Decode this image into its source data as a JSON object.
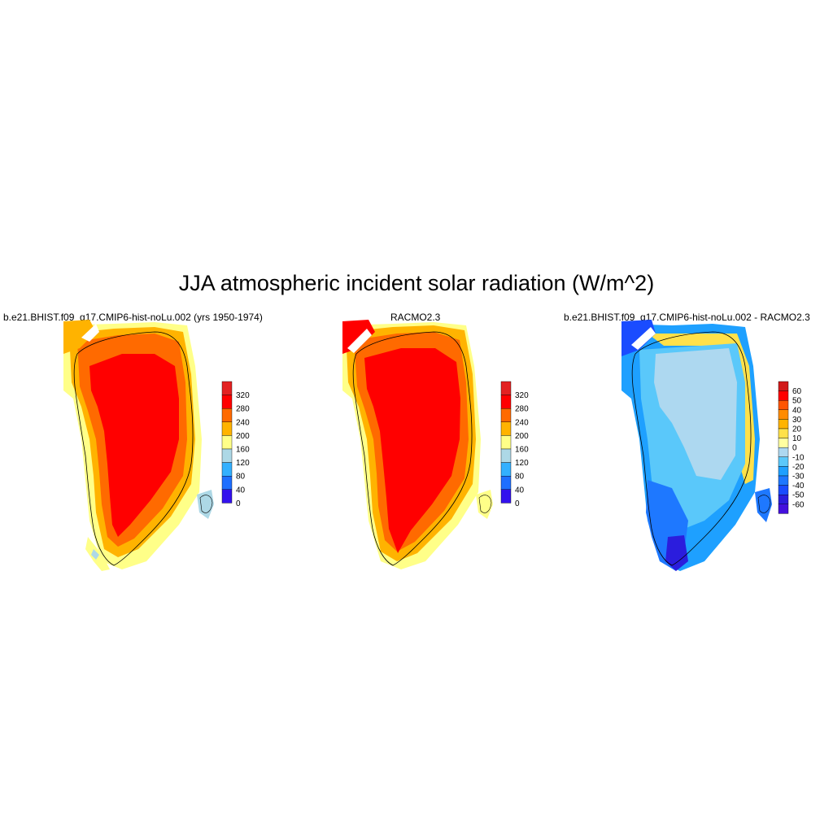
{
  "title": "JJA atmospheric incident solar radiation (W/m^2)",
  "panels": [
    {
      "title": "b.e21.BHIST.f09_g17.CMIP6-hist-noLu.002 (yrs 1950-1974)",
      "colorbar": {
        "labels": [
          "320",
          "280",
          "240",
          "200",
          "160",
          "120",
          "80",
          "40",
          "0"
        ],
        "colors": [
          "#e32222",
          "#ff0000",
          "#ff6a00",
          "#ffb300",
          "#ffff88",
          "#add8e6",
          "#33b0ff",
          "#1e6fff",
          "#3311ee"
        ]
      }
    },
    {
      "title": "RACMO2.3",
      "colorbar": {
        "labels": [
          "320",
          "280",
          "240",
          "200",
          "160",
          "120",
          "80",
          "40",
          "0"
        ],
        "colors": [
          "#e32222",
          "#ff0000",
          "#ff6a00",
          "#ffb300",
          "#ffff88",
          "#add8e6",
          "#33b0ff",
          "#1e6fff",
          "#3311ee"
        ]
      }
    },
    {
      "title": "b.e21.BHIST.f09_g17.CMIP6-hist-noLu.002 - RACMO2.3",
      "colorbar": {
        "labels": [
          "60",
          "50",
          "40",
          "30",
          "20",
          "10",
          "0",
          "-10",
          "-20",
          "-30",
          "-40",
          "-50",
          "-60"
        ],
        "colors": [
          "#d11a1a",
          "#ff0000",
          "#ff5500",
          "#ff8c00",
          "#ffb400",
          "#ffe14a",
          "#ffffa0",
          "#add8f0",
          "#5ac8fa",
          "#1ea0ff",
          "#1e78ff",
          "#1a4cff",
          "#2b1ddd",
          "#4410dd"
        ]
      }
    }
  ]
}
